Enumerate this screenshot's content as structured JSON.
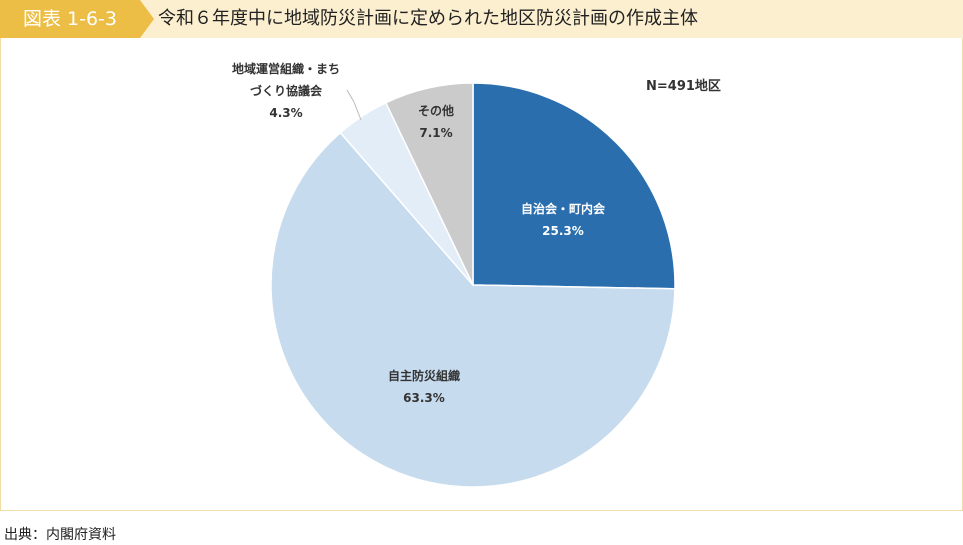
{
  "header": {
    "figure_number": "図表 1-6-3",
    "title": "令和６年度中に地域防災計画に定められた地区防災計画の作成主体"
  },
  "note": "N=491地区",
  "source": "出典：内閣府資料",
  "colors": {
    "badge": "#ecbe46",
    "header_bg": "#fbefcf",
    "panel_border": "#f0dca5"
  },
  "chart_data": {
    "type": "pie",
    "slices": [
      {
        "label": "自治会・町内会",
        "value": 25.3,
        "value_label": "25.3%",
        "color": "#2a6eae"
      },
      {
        "label": "自主防災組織",
        "value": 63.3,
        "value_label": "63.3%",
        "color": "#c7dbee"
      },
      {
        "label_line1": "地域運営組織・まち",
        "label_line2": "づくり協議会",
        "value": 4.3,
        "value_label": "4.3%",
        "color": "#e3edf8"
      },
      {
        "label": "その他",
        "value": 7.1,
        "value_label": "7.1%",
        "color": "#cbcbcb"
      }
    ],
    "start": "12 o'clock",
    "direction": "clockwise"
  }
}
